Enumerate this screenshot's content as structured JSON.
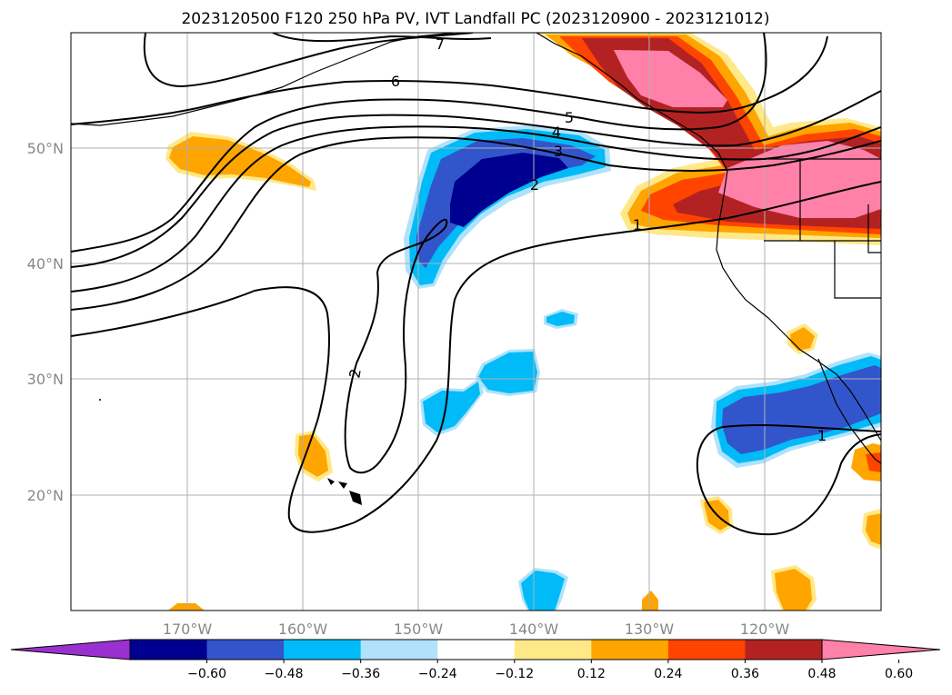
{
  "title": "2023120500 F120 250 hPa PV, IVT Landfall PC (2023120900 - 2023121012)",
  "map": {
    "lon_ticks": [
      "170°W",
      "160°W",
      "150°W",
      "140°W",
      "130°W",
      "120°W"
    ],
    "lat_ticks": [
      "50°N",
      "40°N",
      "30°N",
      "20°N"
    ],
    "extent": {
      "lon": [
        -180,
        -110
      ],
      "lat": [
        10,
        60
      ]
    },
    "grid": true
  },
  "pv_contour_labels": [
    "7",
    "6",
    "5",
    "4",
    "3",
    "2",
    "1",
    "2",
    "1"
  ],
  "colorbar": {
    "ticks": [
      "−0.60",
      "−0.48",
      "−0.36",
      "−0.24",
      "−0.12",
      "0.12",
      "0.24",
      "0.36",
      "0.48",
      "0.60"
    ],
    "colors": [
      "#9b30d0",
      "#000090",
      "#3355cc",
      "#00bbf7",
      "#b0e2fb",
      "#ffffff",
      "#ffe888",
      "#ffa500",
      "#ff4400",
      "#b22222",
      "#ff80a8"
    ],
    "extend": "both"
  },
  "colors": {
    "dark_blue": "#000090",
    "mid_blue": "#3355cc",
    "cyan": "#00bbf7",
    "light_blue": "#b0e2fb",
    "yellow": "#ffe888",
    "orange": "#ffa500",
    "red_orange": "#ff4400",
    "dark_red": "#b22222",
    "pink": "#ff80a8"
  }
}
